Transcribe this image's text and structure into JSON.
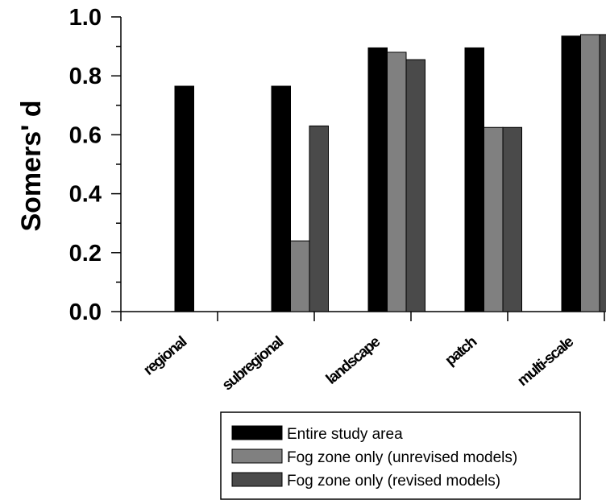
{
  "chart_data": {
    "type": "bar",
    "ylabel": "Somers' d",
    "ylim": [
      0,
      1
    ],
    "yticks": [
      "0.0",
      "0.2",
      "0.4",
      "0.6",
      "0.8",
      "1.0"
    ],
    "categories": [
      "regional",
      "subregional",
      "landscape",
      "patch",
      "multi-scale"
    ],
    "series": [
      {
        "name": "Entire study area",
        "color": "#000000",
        "values": [
          0.765,
          0.765,
          0.895,
          0.895,
          0.935
        ]
      },
      {
        "name": "Fog zone only (unrevised models)",
        "color": "#808080",
        "values": [
          null,
          0.24,
          0.88,
          0.625,
          0.94
        ]
      },
      {
        "name": "Fog zone only (revised models)",
        "color": "#4a4a4a",
        "values": [
          null,
          0.63,
          0.855,
          0.625,
          0.94
        ]
      }
    ],
    "legend_position": "bottom-right",
    "grid": false
  }
}
